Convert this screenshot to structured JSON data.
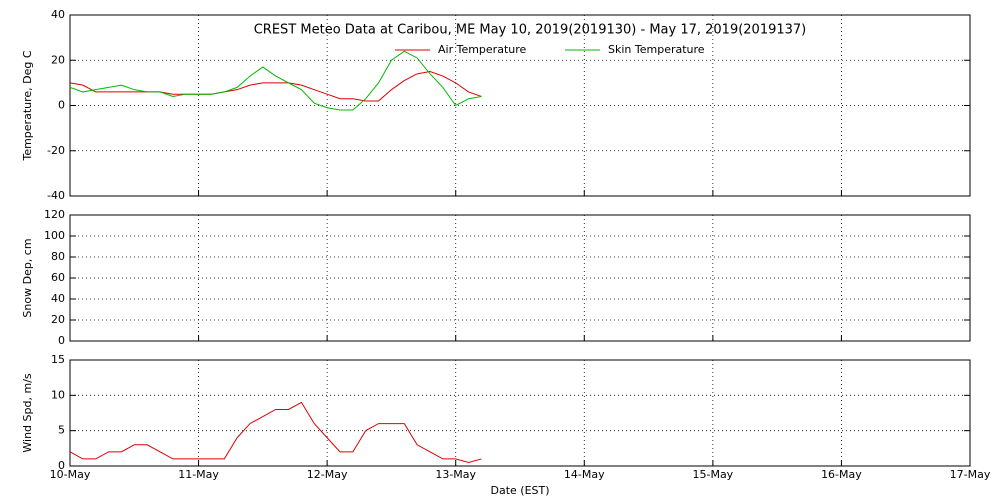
{
  "chart_data": [
    {
      "type": "line",
      "title": "CREST Meteo Data at Caribou, ME   May 10, 2019(2019130) - May 17, 2019(2019137)",
      "ylabel": "Temperature, Deg C",
      "x": [
        10.0,
        10.1,
        10.2,
        10.3,
        10.4,
        10.5,
        10.6,
        10.7,
        10.8,
        10.9,
        11.0,
        11.1,
        11.2,
        11.3,
        11.4,
        11.5,
        11.6,
        11.7,
        11.8,
        11.9,
        12.0,
        12.1,
        12.2,
        12.3,
        12.4,
        12.5,
        12.6,
        12.7,
        12.8,
        12.9,
        13.0,
        13.1,
        13.2
      ],
      "series": [
        {
          "name": "Air Temperature",
          "color": "#dd0000",
          "values": [
            10,
            9,
            6,
            6,
            6,
            6,
            6,
            6,
            5,
            5,
            5,
            5,
            6,
            7,
            9,
            10,
            10,
            10,
            9,
            7,
            5,
            3,
            3,
            2,
            2,
            7,
            11,
            14,
            15,
            13,
            10,
            6,
            4
          ]
        },
        {
          "name": "Skin Temperature",
          "color": "#00bb00",
          "values": [
            8,
            6,
            7,
            8,
            9,
            7,
            6,
            6,
            4,
            5,
            5,
            5,
            6,
            8,
            13,
            17,
            13,
            10,
            7,
            1,
            -1,
            -2,
            -2,
            3,
            10,
            20,
            24,
            21,
            14,
            8,
            0,
            3,
            4
          ]
        }
      ],
      "ylim": [
        -40,
        40
      ],
      "yticks": [
        -40,
        -20,
        0,
        20,
        40
      ],
      "grid": true
    },
    {
      "type": "line",
      "ylabel": "Snow Dep, cm",
      "ylim": [
        0,
        120
      ],
      "yticks": [
        0,
        20,
        40,
        60,
        80,
        100,
        120
      ],
      "grid": true
    },
    {
      "type": "line",
      "ylabel": "Wind Spd, m/s",
      "xlabel": "Date (EST)",
      "x": [
        10.0,
        10.1,
        10.2,
        10.3,
        10.4,
        10.5,
        10.6,
        10.7,
        10.8,
        10.9,
        11.0,
        11.1,
        11.2,
        11.3,
        11.4,
        11.5,
        11.6,
        11.7,
        11.8,
        11.9,
        12.0,
        12.1,
        12.2,
        12.3,
        12.4,
        12.5,
        12.6,
        12.7,
        12.8,
        12.9,
        13.0,
        13.1,
        13.2
      ],
      "series": [
        {
          "name": "Wind Speed",
          "color": "#dd0000",
          "values": [
            2,
            1,
            1,
            2,
            2,
            3,
            3,
            2,
            1,
            1,
            1,
            1,
            1,
            4,
            6,
            7,
            8,
            8,
            9,
            6,
            4,
            2,
            2,
            5,
            6,
            6,
            6,
            3,
            2,
            1,
            1,
            0.5,
            1
          ]
        }
      ],
      "xlim": [
        10,
        17
      ],
      "xticks": [
        {
          "value": 10,
          "label": "10-May"
        },
        {
          "value": 11,
          "label": "11-May"
        },
        {
          "value": 12,
          "label": "12-May"
        },
        {
          "value": 13,
          "label": "13-May"
        },
        {
          "value": 14,
          "label": "14-May"
        },
        {
          "value": 15,
          "label": "15-May"
        },
        {
          "value": 16,
          "label": "16-May"
        },
        {
          "value": 17,
          "label": "17-May"
        }
      ],
      "ylim": [
        0,
        15
      ],
      "yticks": [
        0,
        5,
        10,
        15
      ],
      "grid": true
    }
  ]
}
